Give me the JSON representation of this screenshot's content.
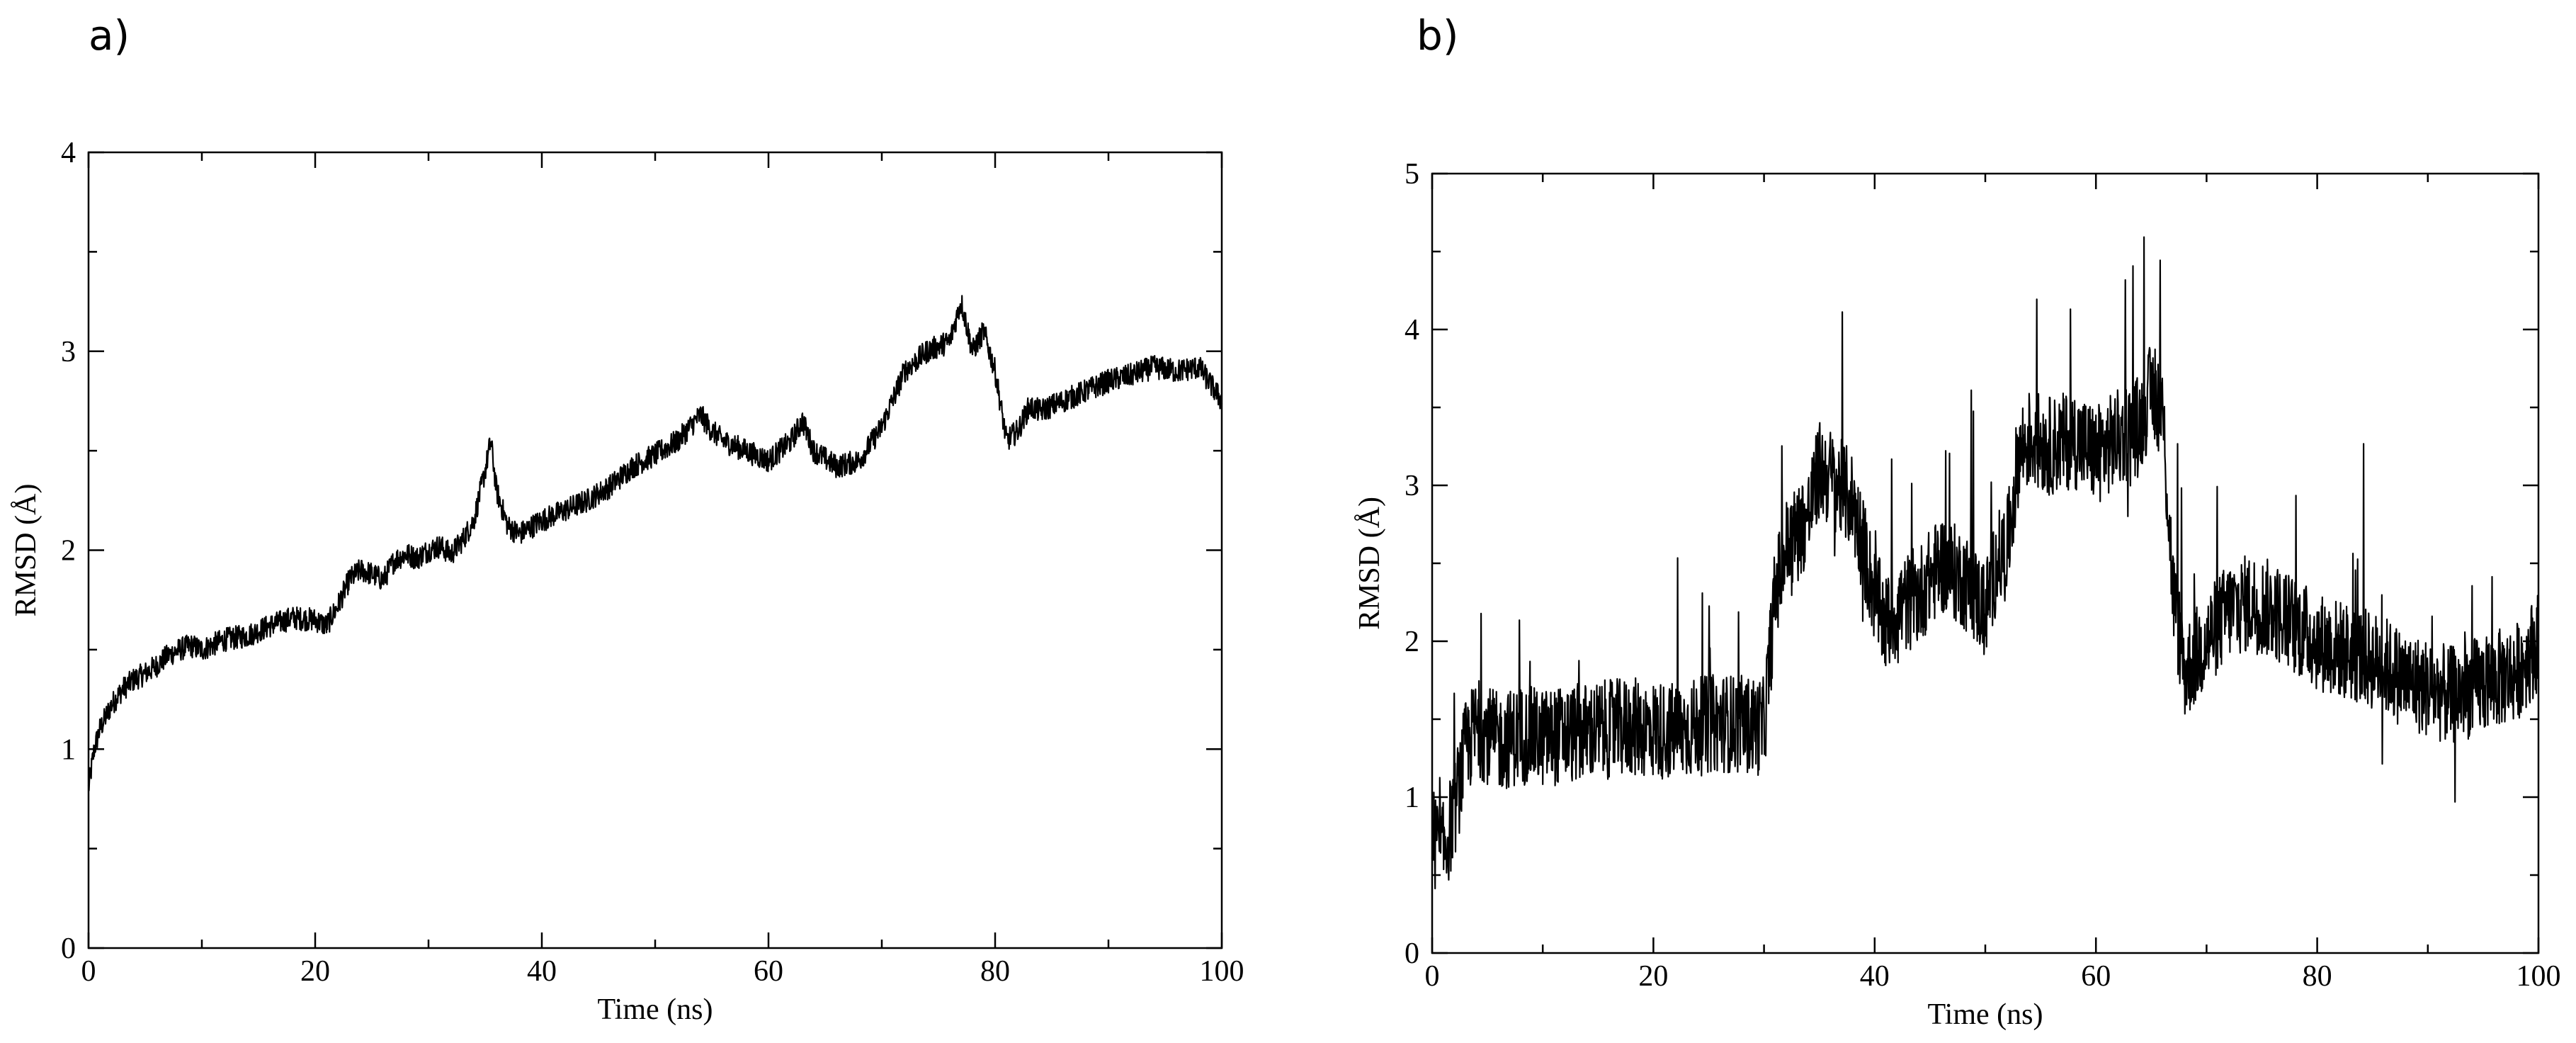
{
  "chart_data": [
    {
      "panel": "a)",
      "type": "line",
      "xlabel": "Time (ns)",
      "ylabel": "RMSD (Å)",
      "xlim": [
        0,
        100
      ],
      "ylim": [
        0,
        4
      ],
      "xticks": [
        0,
        20,
        40,
        60,
        80,
        100
      ],
      "yticks": [
        0,
        1,
        2,
        3,
        4
      ],
      "grid": false,
      "series": [
        {
          "x": [
            0,
            0.5,
            1,
            2,
            3,
            4,
            5,
            6,
            7,
            8,
            9,
            10,
            12,
            14,
            16,
            18,
            20,
            21,
            22,
            23,
            24,
            25,
            26,
            27,
            28,
            29,
            30,
            31,
            32,
            33,
            34,
            35,
            35.5,
            36,
            37,
            38,
            40,
            42,
            44,
            46,
            48,
            50,
            52,
            54,
            55,
            56,
            58,
            60,
            62,
            63,
            64,
            66,
            68,
            70,
            72,
            74,
            76,
            77,
            78,
            79,
            80,
            81,
            82,
            83,
            84,
            86,
            88,
            90,
            92,
            94,
            96,
            98,
            100
          ],
          "values": [
            0.8,
            1.0,
            1.1,
            1.22,
            1.3,
            1.35,
            1.38,
            1.42,
            1.47,
            1.5,
            1.52,
            1.5,
            1.55,
            1.57,
            1.62,
            1.66,
            1.65,
            1.62,
            1.72,
            1.85,
            1.9,
            1.88,
            1.85,
            1.95,
            1.98,
            1.96,
            2.0,
            2.02,
            1.98,
            2.05,
            2.15,
            2.4,
            2.55,
            2.3,
            2.12,
            2.08,
            2.15,
            2.2,
            2.25,
            2.32,
            2.42,
            2.48,
            2.55,
            2.68,
            2.6,
            2.55,
            2.5,
            2.45,
            2.55,
            2.65,
            2.5,
            2.42,
            2.45,
            2.62,
            2.9,
            3.0,
            3.05,
            3.25,
            3.0,
            3.1,
            2.9,
            2.55,
            2.6,
            2.72,
            2.7,
            2.75,
            2.8,
            2.85,
            2.88,
            2.92,
            2.9,
            2.92,
            2.75
          ]
        }
      ]
    },
    {
      "panel": "b)",
      "type": "line",
      "xlabel": "Time (ns)",
      "ylabel": "RMSD (Å)",
      "xlim": [
        0,
        100
      ],
      "ylim": [
        0,
        5
      ],
      "xticks": [
        0,
        20,
        40,
        60,
        80,
        100
      ],
      "yticks": [
        0,
        1,
        2,
        3,
        4,
        5
      ],
      "grid": false,
      "series": [
        {
          "x": [
            0,
            1,
            2,
            3,
            4,
            6,
            8,
            10,
            14,
            18,
            22,
            26,
            30,
            31,
            32,
            34,
            35,
            36,
            38,
            40,
            41,
            42,
            44,
            46,
            48,
            50,
            51,
            52,
            53,
            54,
            56,
            58,
            60,
            62,
            64,
            65,
            66,
            67,
            68,
            70,
            72,
            74,
            76,
            78,
            80,
            82,
            84,
            86,
            88,
            90,
            92,
            94,
            96,
            98,
            100
          ],
          "values": [
            0.75,
            0.65,
            0.9,
            1.3,
            1.45,
            1.35,
            1.4,
            1.38,
            1.42,
            1.45,
            1.42,
            1.48,
            1.45,
            2.3,
            2.6,
            2.8,
            3.1,
            3.05,
            2.9,
            2.3,
            2.1,
            2.2,
            2.3,
            2.5,
            2.4,
            2.2,
            2.5,
            2.6,
            3.2,
            3.3,
            3.25,
            3.3,
            3.2,
            3.3,
            3.4,
            3.6,
            3.5,
            2.3,
            1.8,
            2.0,
            2.2,
            2.25,
            2.2,
            2.1,
            2.0,
            1.95,
            1.9,
            1.85,
            1.75,
            1.7,
            1.65,
            1.7,
            1.75,
            1.8,
            2.0
          ]
        }
      ]
    }
  ]
}
